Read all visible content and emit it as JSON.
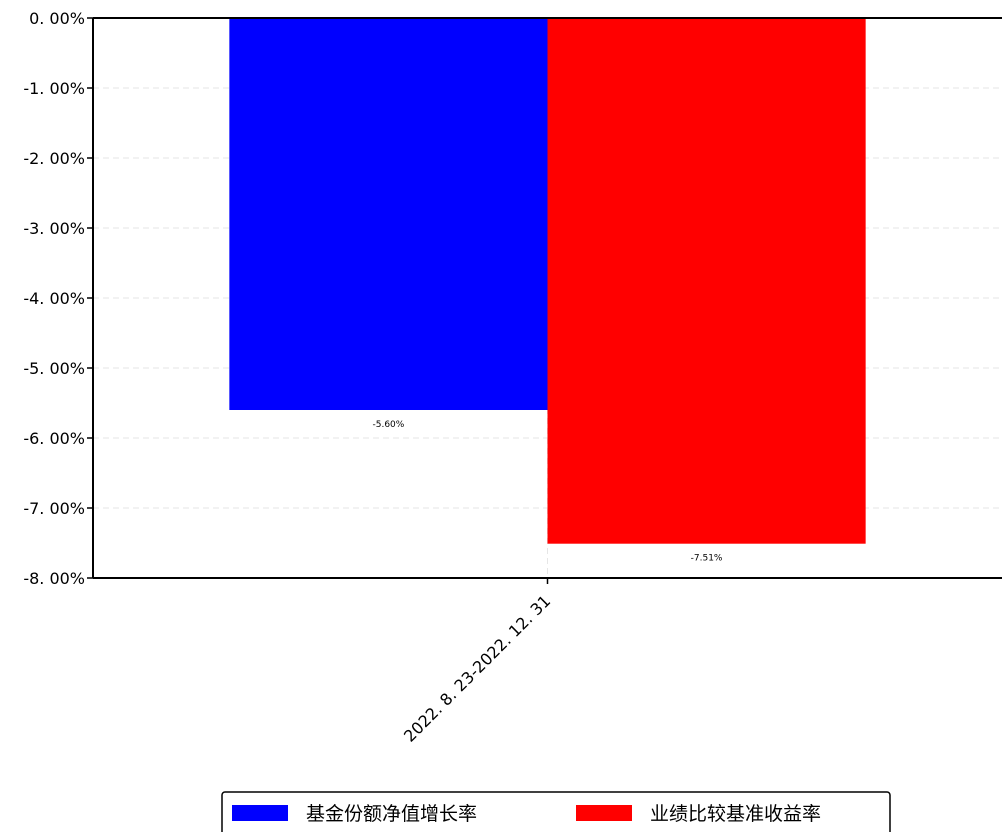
{
  "chart_data": {
    "type": "bar",
    "categories": [
      "2022.8.23-2022.12.31"
    ],
    "series": [
      {
        "name": "基金份额净值增长率",
        "values": [
          -5.6
        ],
        "color": "#0000ff",
        "data_labels": [
          "-5.60%"
        ]
      },
      {
        "name": "业绩比较基准收益率",
        "values": [
          -7.51
        ],
        "color": "#ff0000",
        "data_labels": [
          "-7.51%"
        ]
      }
    ],
    "ylim": [
      -8,
      0
    ],
    "y_ticks": [
      0,
      -1,
      -2,
      -3,
      -4,
      -5,
      -6,
      -7,
      -8
    ],
    "y_tick_labels": [
      "0. 00%",
      "-1. 00%",
      "-2. 00%",
      "-3. 00%",
      "-4. 00%",
      "-5. 00%",
      "-6. 00%",
      "-7. 00%",
      "-8. 00%"
    ],
    "x_tick_labels": [
      "2022. 8. 23-2022. 12. 31"
    ],
    "grid": true,
    "legend_position": "bottom-center",
    "title": "",
    "xlabel": "",
    "ylabel": ""
  }
}
